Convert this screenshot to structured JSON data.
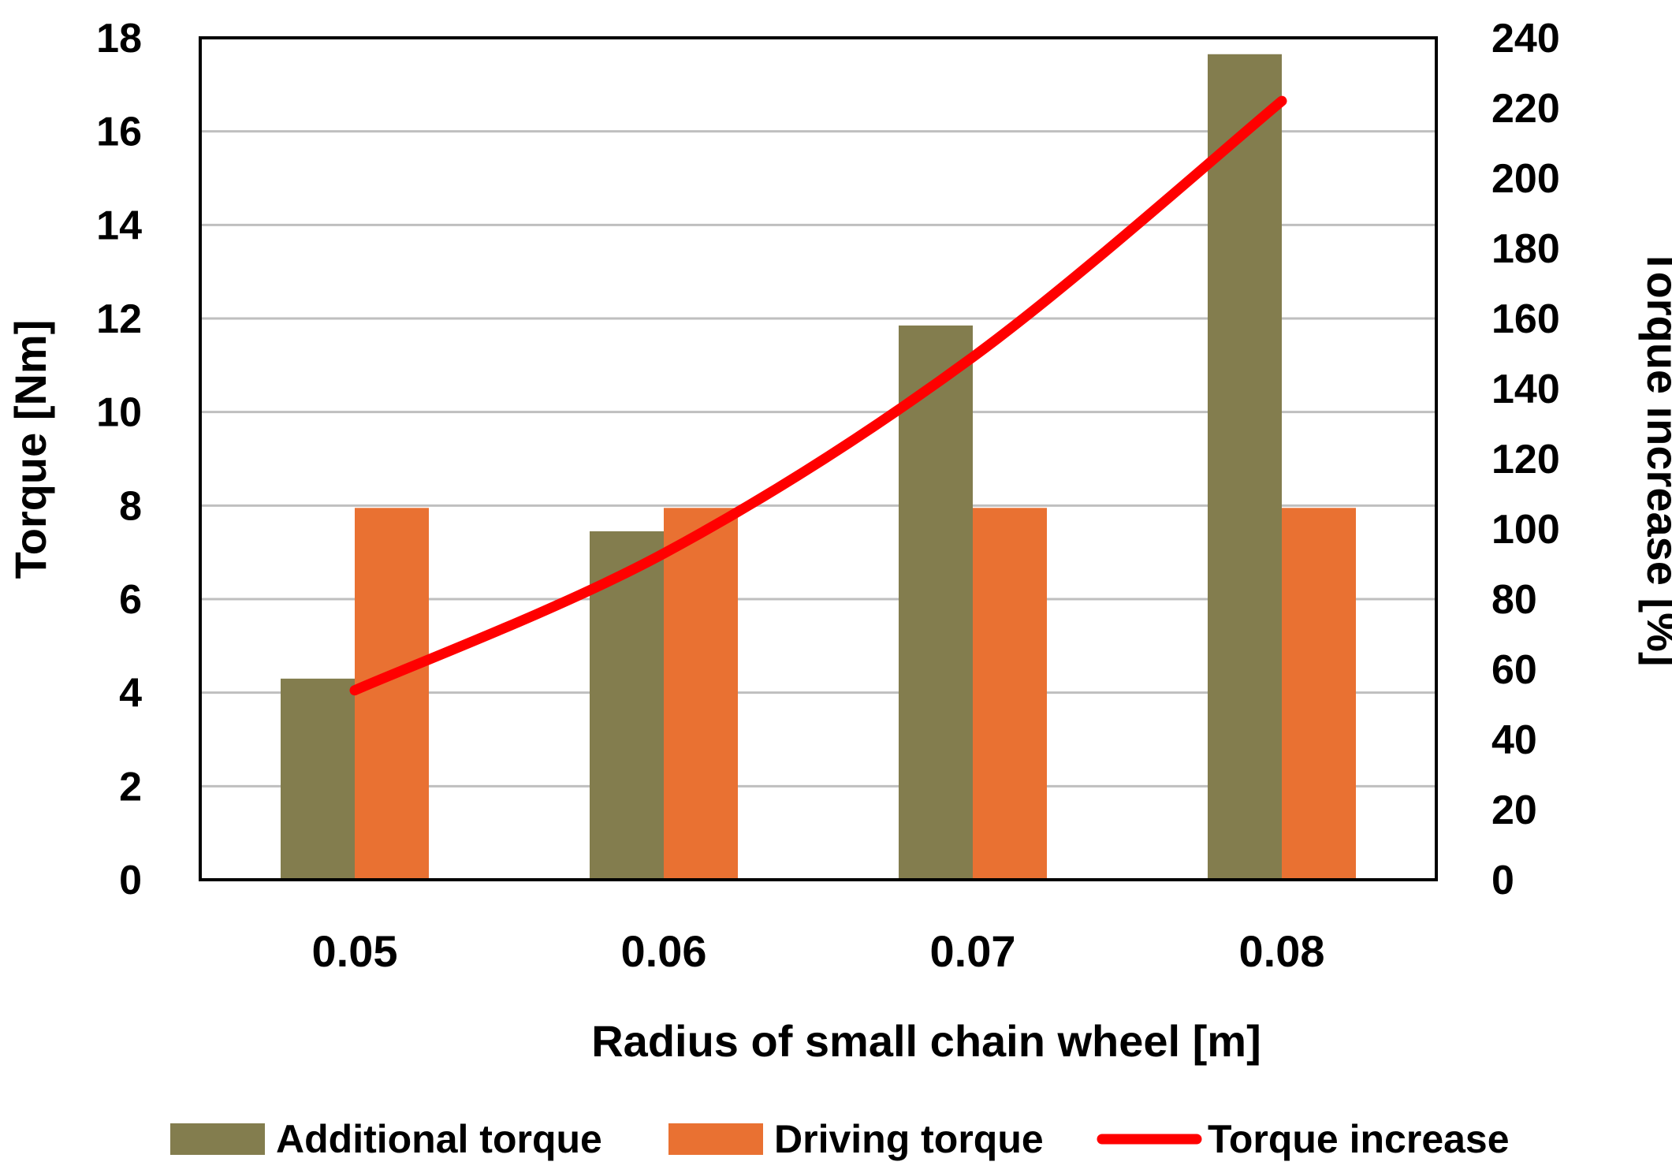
{
  "chart_data": {
    "type": "bar",
    "categories": [
      "0.05",
      "0.06",
      "0.07",
      "0.08"
    ],
    "series": [
      {
        "name": "Additional torque",
        "kind": "bar",
        "axis": "left",
        "color": "#837D4E",
        "values": [
          4.3,
          7.45,
          11.85,
          17.65
        ]
      },
      {
        "name": "Driving torque",
        "kind": "bar",
        "axis": "left",
        "color": "#E97132",
        "values": [
          7.95,
          7.95,
          7.95,
          7.95
        ]
      },
      {
        "name": "Torque increase",
        "kind": "line",
        "axis": "right",
        "color": "#FF0000",
        "values": [
          54,
          93,
          149,
          222
        ]
      }
    ],
    "xlabel": "Radius of small chain wheel [m]",
    "ylabel": "Torque  [Nm]",
    "y2label": "Torque increase [%]",
    "ylim": [
      0,
      18
    ],
    "yticks": [
      0,
      2,
      4,
      6,
      8,
      10,
      12,
      14,
      16,
      18
    ],
    "y2lim": [
      0,
      240
    ],
    "y2ticks": [
      0,
      20,
      40,
      60,
      80,
      100,
      120,
      140,
      160,
      180,
      200,
      220,
      240
    ],
    "grid": true,
    "legend_position": "bottom"
  }
}
